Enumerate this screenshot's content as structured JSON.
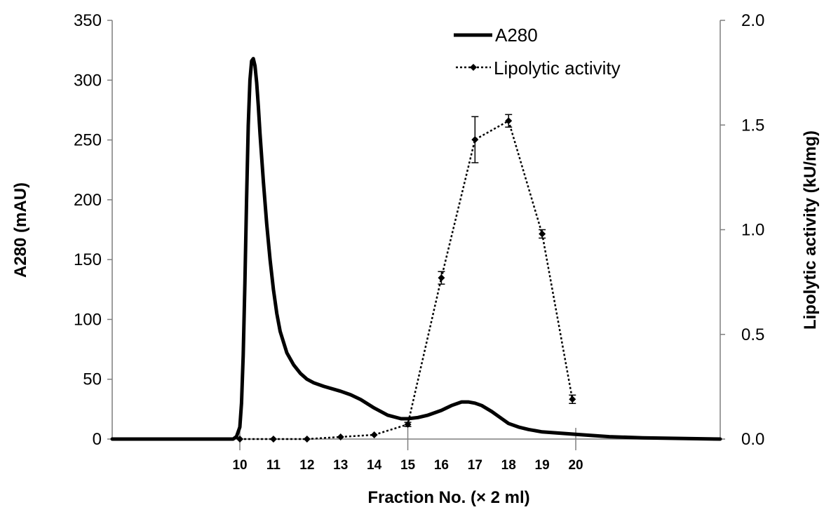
{
  "chart_data": {
    "type": "line",
    "title": "",
    "xlabel": "Fraction No. (× 2 ml)",
    "ylabel_left": "A280 (mAU)",
    "ylabel_right": "Lipolytic activity (kU/mg)",
    "x_ticks": [
      "10",
      "11",
      "12",
      "13",
      "14",
      "15",
      "16",
      "17",
      "18",
      "19",
      "20"
    ],
    "y_left_ticks": [
      "0",
      "50",
      "100",
      "150",
      "200",
      "250",
      "300",
      "350"
    ],
    "y_right_ticks": [
      "0.0",
      "0.5",
      "1.0",
      "1.5",
      "2.0"
    ],
    "ylim_left": [
      0,
      350
    ],
    "ylim_right": [
      0,
      2.0
    ],
    "xlim": [
      6.2,
      24.3
    ],
    "grid": false,
    "legend_position": "top-right",
    "series": [
      {
        "name": "A280",
        "axis": "left",
        "style": "solid",
        "x": [
          6.2,
          9.0,
          9.8,
          9.9,
          10.0,
          10.05,
          10.1,
          10.15,
          10.2,
          10.25,
          10.3,
          10.35,
          10.4,
          10.45,
          10.5,
          10.55,
          10.6,
          10.7,
          10.8,
          10.9,
          11.0,
          11.1,
          11.2,
          11.4,
          11.6,
          11.8,
          12.0,
          12.2,
          12.5,
          13.0,
          13.3,
          13.6,
          14.0,
          14.4,
          14.8,
          15.0,
          15.3,
          15.6,
          16.0,
          16.3,
          16.6,
          16.8,
          17.0,
          17.2,
          17.5,
          17.8,
          18.0,
          18.3,
          18.6,
          19.0,
          19.5,
          20.0,
          21.0,
          22.0,
          24.3
        ],
        "values": [
          0,
          0,
          0,
          2,
          10,
          30,
          70,
          130,
          200,
          262,
          300,
          316,
          318,
          312,
          298,
          278,
          255,
          215,
          180,
          150,
          125,
          105,
          90,
          72,
          62,
          55,
          50,
          47,
          44,
          40,
          37,
          33,
          26,
          20,
          17,
          17,
          18,
          20,
          24,
          28,
          31,
          31,
          30,
          28,
          23,
          17,
          13,
          10,
          8,
          6,
          5,
          4,
          2,
          1,
          0
        ]
      },
      {
        "name": "Lipolytic activity",
        "axis": "right",
        "style": "dotted",
        "x": [
          10,
          11,
          12,
          13,
          14,
          15,
          16,
          17,
          18,
          19,
          19.9
        ],
        "values": [
          0.0,
          0.0,
          0.0,
          0.01,
          0.02,
          0.07,
          0.77,
          1.43,
          1.52,
          0.98,
          0.19
        ],
        "errors": [
          0.0,
          0.0,
          0.0,
          0.0,
          0.0,
          0.01,
          0.03,
          0.11,
          0.03,
          0.02,
          0.02
        ]
      }
    ]
  }
}
